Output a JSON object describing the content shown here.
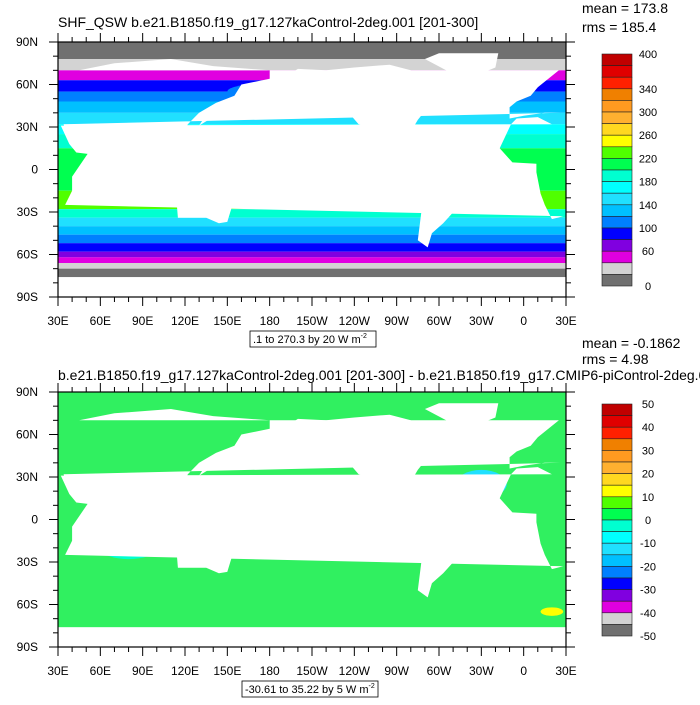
{
  "panels": [
    {
      "title": "SHF_QSW b.e21.B1850.f19_g17.127kaControl-2deg.001 [201-300]",
      "stats": {
        "mean": "mean = 173.8",
        "rms": "rms = 185.4"
      },
      "contour_info": ".1 to 270.3 by 20  W m",
      "contour_info_sup": "-2",
      "colorbar": {
        "labels": [
          "400",
          "340",
          "300",
          "260",
          "220",
          "180",
          "140",
          "100",
          "60",
          "0"
        ],
        "colors": [
          "#c00000",
          "#e00000",
          "#ff2000",
          "#f08000",
          "#ff9a20",
          "#ffb030",
          "#ffd820",
          "#ffff00",
          "#50ff00",
          "#00ff50",
          "#00ffd0",
          "#00ffff",
          "#20e0ff",
          "#00c0ff",
          "#0080ff",
          "#0000ff",
          "#8000e0",
          "#e000e0",
          "#d3d3d3",
          "#707070"
        ]
      },
      "kind": "absolute"
    },
    {
      "title": "b.e21.B1850.f19_g17.127kaControl-2deg.001 [201-300] - b.e21.B1850.f19_g17.CMIP6-piControl-2deg.0",
      "stats": {
        "mean": "mean = -0.1862",
        "rms": "rms = 4.98"
      },
      "contour_info": "-30.61 to 35.22 by 5  W m",
      "contour_info_sup": "-2",
      "colorbar": {
        "labels": [
          "50",
          "40",
          "30",
          "20",
          "10",
          "0",
          "-10",
          "-20",
          "-30",
          "-40",
          "-50"
        ],
        "colors": [
          "#c00000",
          "#e00000",
          "#ff2000",
          "#f08000",
          "#ff9a20",
          "#ffb030",
          "#ffd820",
          "#ffff00",
          "#50ff00",
          "#00ff50",
          "#00ffd0",
          "#00ffff",
          "#20e0ff",
          "#00c0ff",
          "#0080ff",
          "#0000ff",
          "#8000e0",
          "#e000e0",
          "#d3d3d3",
          "#707070"
        ]
      },
      "kind": "difference"
    }
  ],
  "axes": {
    "lat_labels": [
      "90N",
      "60N",
      "30N",
      "0",
      "30S",
      "60S",
      "90S"
    ],
    "lon_labels": [
      "30E",
      "60E",
      "90E",
      "120E",
      "150E",
      "180",
      "150W",
      "120W",
      "90W",
      "60W",
      "30W",
      "0",
      "30E"
    ]
  }
}
